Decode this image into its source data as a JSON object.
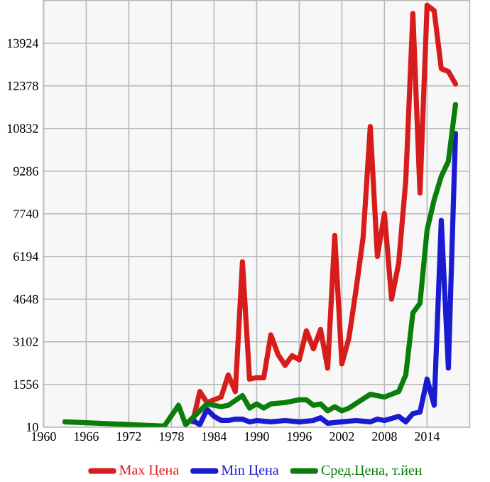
{
  "chart_data": {
    "type": "line",
    "xlim": [
      1960,
      2020
    ],
    "xticks": [
      1960,
      1966,
      1972,
      1978,
      1984,
      1990,
      1996,
      2002,
      2008,
      2014
    ],
    "ylim": [
      10,
      15470
    ],
    "yticks": [
      10,
      1556,
      3102,
      4648,
      6194,
      7740,
      9286,
      10832,
      12378,
      13924
    ],
    "grid": true,
    "legend": "bottom",
    "marker": "none",
    "line_style": "solid",
    "series": [
      {
        "name": "Max Цена",
        "color": "#d81c1c",
        "x": [
          1981,
          1982,
          1983,
          1984,
          1985,
          1986,
          1987,
          1988,
          1989,
          1990,
          1991,
          1992,
          1993,
          1994,
          1995,
          1996,
          1997,
          1998,
          1999,
          2000,
          2001,
          2002,
          2003,
          2004,
          2005,
          2006,
          2007,
          2008,
          2009,
          2010,
          2011,
          2012,
          2013,
          2014,
          2015,
          2016,
          2017,
          2018
        ],
        "values": [
          200,
          1300,
          900,
          1000,
          1100,
          1900,
          1300,
          6000,
          1750,
          1800,
          1800,
          3350,
          2650,
          2250,
          2600,
          2450,
          3500,
          2850,
          3550,
          2150,
          6950,
          2300,
          3250,
          5000,
          6900,
          10900,
          6200,
          7750,
          4650,
          5950,
          8950,
          15000,
          8500,
          15300,
          15100,
          13000,
          12900,
          12450
        ]
      },
      {
        "name": "Min Цена",
        "color": "#1a1ad0",
        "x": [
          1981,
          1982,
          1983,
          1984,
          1985,
          1986,
          1987,
          1988,
          1989,
          1990,
          1992,
          1994,
          1996,
          1998,
          1999,
          2000,
          2002,
          2004,
          2006,
          2007,
          2008,
          2010,
          2011,
          2012,
          2013,
          2014,
          2015,
          2016,
          2017,
          2018
        ],
        "values": [
          250,
          100,
          650,
          400,
          250,
          250,
          300,
          300,
          200,
          250,
          200,
          250,
          200,
          250,
          350,
          150,
          200,
          250,
          200,
          300,
          250,
          400,
          200,
          500,
          550,
          1750,
          800,
          7500,
          2150,
          10650
        ]
      },
      {
        "name": "Сред.Цена, т.йен",
        "color": "#0b7d0b",
        "x": [
          1963,
          1977,
          1979,
          1980,
          1983,
          1985,
          1986,
          1988,
          1989,
          1990,
          1991,
          1992,
          1994,
          1996,
          1997,
          1998,
          1999,
          2000,
          2001,
          2002,
          2003,
          2006,
          2008,
          2010,
          2011,
          2012,
          2013,
          2014,
          2015,
          2016,
          2017,
          2018
        ],
        "values": [
          200,
          50,
          800,
          100,
          850,
          750,
          800,
          1150,
          700,
          850,
          700,
          850,
          900,
          1000,
          1000,
          800,
          850,
          600,
          750,
          600,
          700,
          1200,
          1100,
          1300,
          1900,
          4150,
          4500,
          7150,
          8250,
          9100,
          9650,
          11700
        ]
      }
    ]
  }
}
